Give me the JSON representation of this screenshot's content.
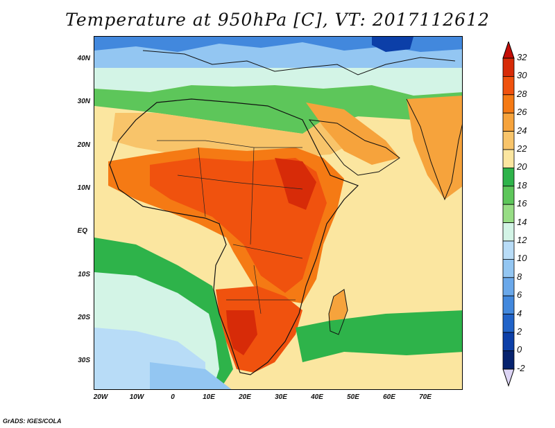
{
  "title": "Temperature at 950hPa [C], VT: 2017112612",
  "credit": "GrADS: IGES/COLA",
  "map": {
    "projection": "lat-lon",
    "lon_range": [
      -23,
      80
    ],
    "lat_range": [
      -36,
      46
    ],
    "lat_ticks": [
      {
        "label": "40N",
        "value": 40
      },
      {
        "label": "30N",
        "value": 30
      },
      {
        "label": "20N",
        "value": 20
      },
      {
        "label": "10N",
        "value": 10
      },
      {
        "label": "EQ",
        "value": 0
      },
      {
        "label": "10S",
        "value": -10
      },
      {
        "label": "20S",
        "value": -20
      },
      {
        "label": "30S",
        "value": -30
      }
    ],
    "lon_ticks": [
      {
        "label": "20W",
        "value": -20
      },
      {
        "label": "10W",
        "value": -10
      },
      {
        "label": "0",
        "value": 0
      },
      {
        "label": "10E",
        "value": 10
      },
      {
        "label": "20E",
        "value": 20
      },
      {
        "label": "30E",
        "value": 30
      },
      {
        "label": "40E",
        "value": 40
      },
      {
        "label": "50E",
        "value": 50
      },
      {
        "label": "60E",
        "value": 60
      },
      {
        "label": "70E",
        "value": 70
      }
    ]
  },
  "colorbar": {
    "levels": [
      "32",
      "30",
      "28",
      "26",
      "24",
      "22",
      "20",
      "18",
      "16",
      "14",
      "12",
      "10",
      "8",
      "6",
      "4",
      "2",
      "0",
      "-2"
    ],
    "colors_top_to_bottom": [
      "#d72b08",
      "#f0520e",
      "#f57a14",
      "#f6a33c",
      "#f8c46a",
      "#fbe6a0",
      "#2eb34a",
      "#5dc65a",
      "#97dd85",
      "#d3f4e6",
      "#b8dcf7",
      "#93c6f2",
      "#6aa8ea",
      "#4288dd",
      "#2163c8",
      "#0c3fa8",
      "#06226e"
    ],
    "top_arrow_color": "#c40d06",
    "bottom_arrow_color": "#dcd4f4"
  }
}
